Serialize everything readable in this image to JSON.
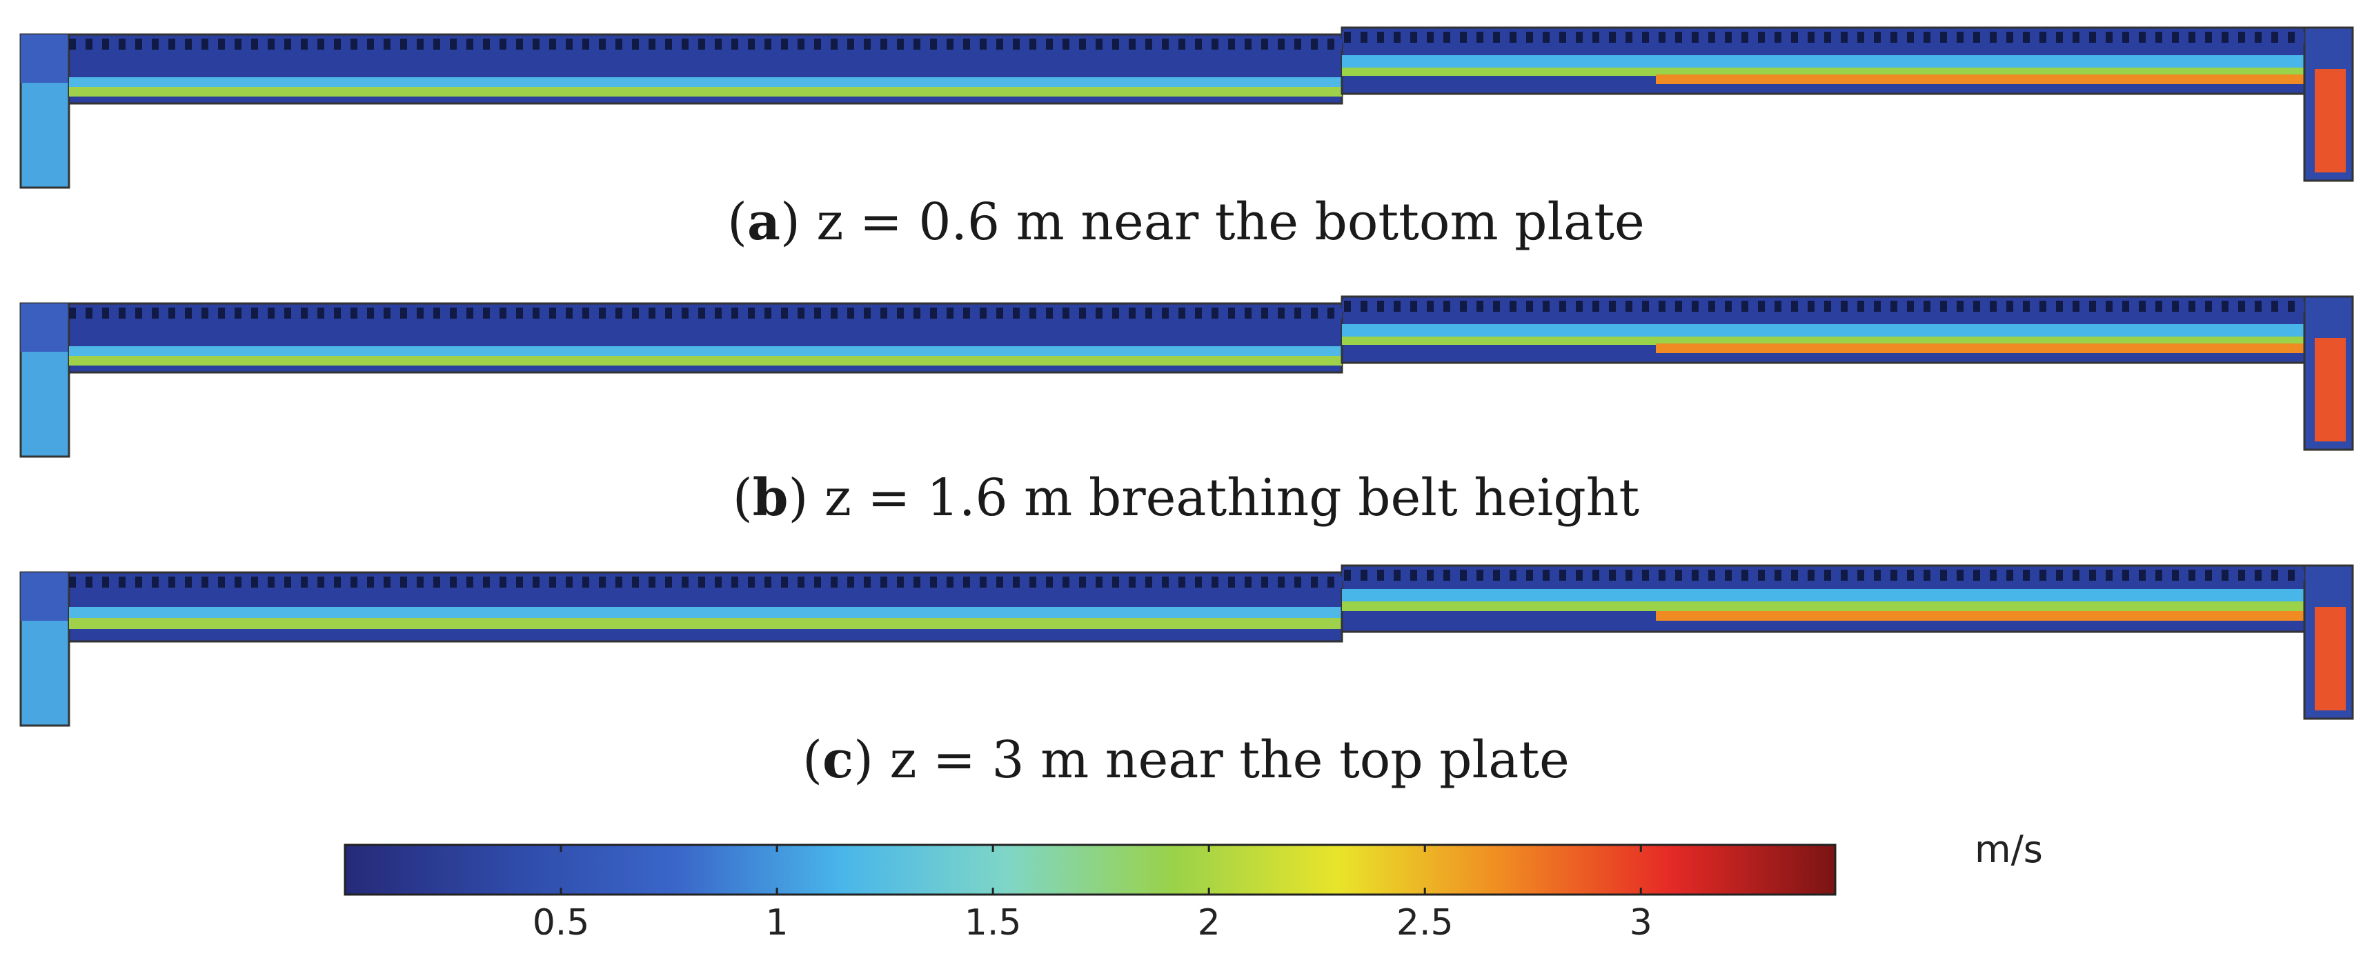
{
  "panels": [
    {
      "letter": "a",
      "text": "z = 0.6 m near the bottom plate"
    },
    {
      "letter": "b",
      "text": "z = 1.6 m breathing belt height"
    },
    {
      "letter": "c",
      "text": "z = 3 m near the top plate"
    }
  ],
  "colorbar": {
    "unit": "m/s",
    "min": 0,
    "max": 3.45,
    "ticks": [
      "0.5",
      "1",
      "1.5",
      "2",
      "2.5",
      "3"
    ],
    "tick_values": [
      0.5,
      1,
      1.5,
      2,
      2.5,
      3
    ],
    "colors": [
      "#262a78",
      "#2f4aa8",
      "#3a66c9",
      "#49b6ea",
      "#7fd6c6",
      "#9ad24a",
      "#e9e42a",
      "#f08a22",
      "#e62a26",
      "#7a1414"
    ]
  }
}
